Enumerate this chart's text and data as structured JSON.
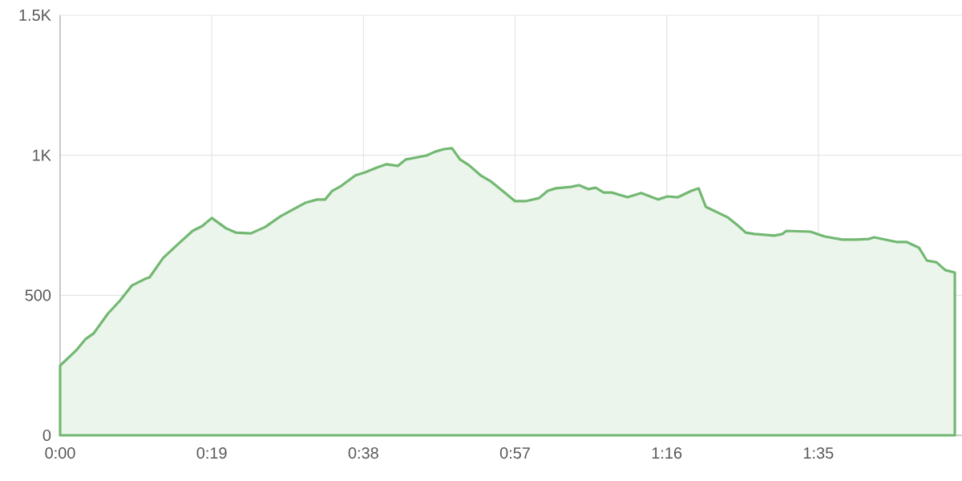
{
  "chart_data": {
    "type": "area",
    "x": [
      0,
      2.0,
      3.2,
      4.2,
      6.0,
      7.5,
      9.0,
      10.6,
      11.2,
      12.9,
      14.7,
      16.6,
      17.8,
      19.0,
      20.8,
      22.0,
      23.9,
      25.7,
      27.6,
      30.7,
      32.2,
      33.2,
      34.1,
      35.2,
      37.0,
      38.2,
      39.7,
      40.9,
      42.3,
      43.3,
      45.9,
      47.0,
      48.1,
      49.1,
      50.1,
      51.2,
      52.7,
      53.9,
      55.3,
      57.0,
      58.3,
      60.0,
      61.1,
      62.1,
      64.0,
      65.0,
      66.2,
      67.1,
      68.1,
      69.1,
      71.1,
      72.8,
      74.9,
      76.1,
      77.4,
      79.1,
      80.0,
      80.9,
      83.6,
      85.0,
      85.9,
      87.0,
      89.5,
      90.5,
      91.0,
      94.0,
      95.8,
      98.0,
      99.7,
      101.3,
      102.0,
      103.3,
      104.9,
      106.1,
      107.6,
      108.6,
      109.8,
      110.9,
      112.1
    ],
    "series": [
      {
        "color": "#72b872",
        "values": [
          249,
          303,
          344,
          364,
          435,
          481,
          535,
          558,
          564,
          633,
          681,
          730,
          747,
          776,
          739,
          724,
          721,
          744,
          782,
          830,
          842,
          842,
          873,
          890,
          928,
          939,
          956,
          968,
          962,
          985,
          999,
          1013,
          1022,
          1025,
          985,
          965,
          928,
          908,
          876,
          836,
          836,
          847,
          873,
          882,
          887,
          893,
          879,
          884,
          867,
          867,
          850,
          865,
          842,
          853,
          850,
          873,
          882,
          816,
          779,
          747,
          724,
          719,
          713,
          719,
          730,
          727,
          710,
          699,
          699,
          701,
          707,
          699,
          690,
          690,
          670,
          624,
          618,
          590,
          581
        ]
      }
    ],
    "xlim": [
      0,
      113
    ],
    "ylim": [
      0,
      1500
    ],
    "xticks": [
      {
        "value": 0,
        "label": "0:00"
      },
      {
        "value": 19,
        "label": "0:19"
      },
      {
        "value": 38,
        "label": "0:38"
      },
      {
        "value": 57,
        "label": "0:57"
      },
      {
        "value": 76,
        "label": "1:16"
      },
      {
        "value": 95,
        "label": "1:35"
      }
    ],
    "yticks": [
      0,
      500,
      {
        "value": 1000,
        "label": "1K"
      },
      {
        "value": 1500,
        "label": "1.5K"
      }
    ],
    "grid": true
  }
}
